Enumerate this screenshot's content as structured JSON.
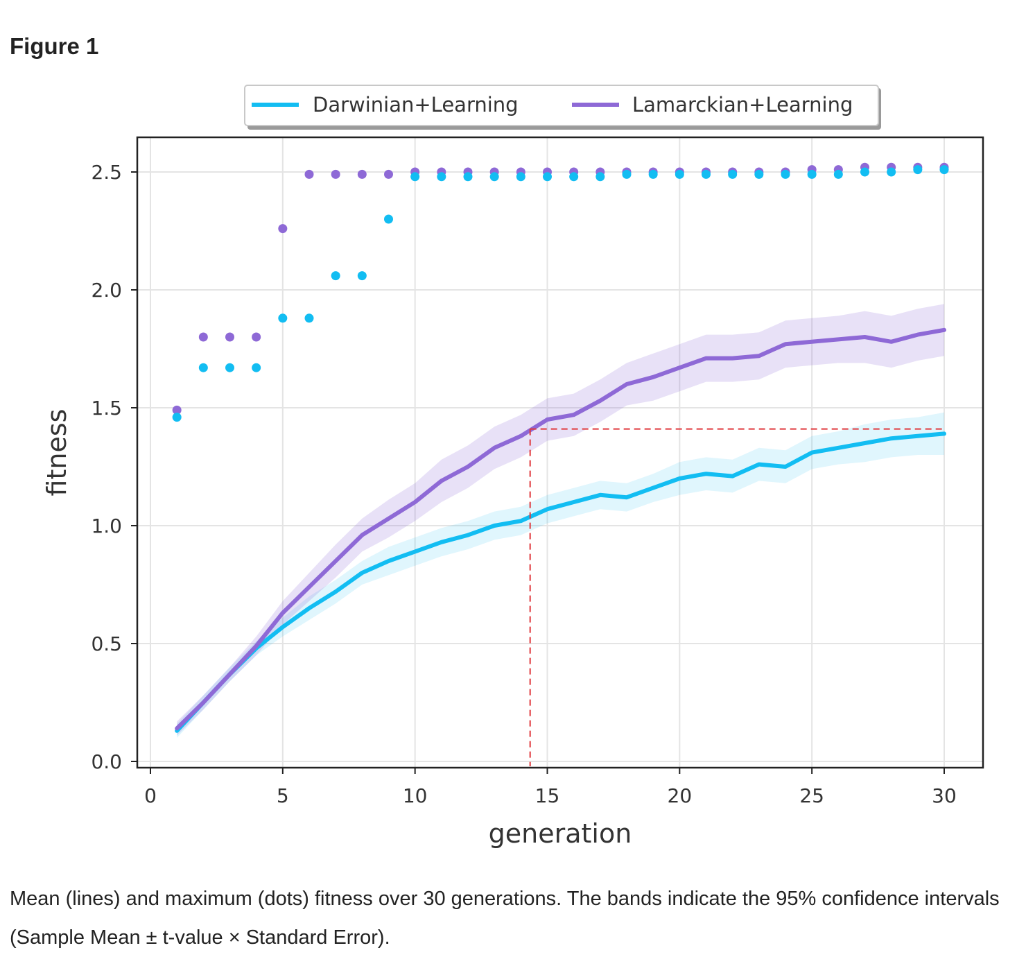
{
  "figure": {
    "title": "Figure 1",
    "caption": "Mean (lines) and maximum (dots) fitness over 30 generations. The bands indicate the 95% confidence intervals (Sample Mean ± t-value × Standard Error)."
  },
  "chart_data": {
    "type": "line",
    "title": "",
    "xlabel": "generation",
    "ylabel": "fitness",
    "xlim": [
      -0.5,
      31.5
    ],
    "ylim": [
      -0.03,
      2.65
    ],
    "xticks": [
      0,
      5,
      10,
      15,
      20,
      25,
      30
    ],
    "xtick_labels": [
      "0",
      "5",
      "10",
      "15",
      "20",
      "25",
      "30"
    ],
    "yticks": [
      0.0,
      0.5,
      1.0,
      1.5,
      2.0,
      2.5
    ],
    "ytick_labels": [
      "0.0",
      "0.5",
      "1.0",
      "1.5",
      "2.0",
      "2.5"
    ],
    "grid": true,
    "legend_position": "top-center-outside",
    "x": [
      1,
      2,
      3,
      4,
      5,
      6,
      7,
      8,
      9,
      10,
      11,
      12,
      13,
      14,
      15,
      16,
      17,
      18,
      19,
      20,
      21,
      22,
      23,
      24,
      25,
      26,
      27,
      28,
      29,
      30
    ],
    "series": [
      {
        "name": "Darwinian+Learning",
        "color": "#12bdf2",
        "mean": [
          0.13,
          0.25,
          0.37,
          0.48,
          0.57,
          0.65,
          0.72,
          0.8,
          0.85,
          0.89,
          0.93,
          0.96,
          1.0,
          1.02,
          1.07,
          1.1,
          1.13,
          1.12,
          1.16,
          1.2,
          1.22,
          1.21,
          1.26,
          1.25,
          1.31,
          1.33,
          1.35,
          1.37,
          1.38,
          1.39
        ],
        "ci_halfwidth": [
          0.03,
          0.03,
          0.03,
          0.03,
          0.04,
          0.05,
          0.05,
          0.05,
          0.06,
          0.06,
          0.06,
          0.06,
          0.06,
          0.06,
          0.06,
          0.06,
          0.06,
          0.06,
          0.06,
          0.07,
          0.07,
          0.07,
          0.07,
          0.07,
          0.07,
          0.07,
          0.08,
          0.08,
          0.08,
          0.09
        ],
        "max": [
          1.46,
          1.67,
          1.67,
          1.67,
          1.88,
          1.88,
          2.06,
          2.06,
          2.3,
          2.48,
          2.48,
          2.48,
          2.48,
          2.48,
          2.48,
          2.48,
          2.48,
          2.49,
          2.49,
          2.49,
          2.49,
          2.49,
          2.49,
          2.49,
          2.49,
          2.49,
          2.5,
          2.5,
          2.51,
          2.51
        ]
      },
      {
        "name": "Lamarckian+Learning",
        "color": "#8e69d6",
        "mean": [
          0.14,
          0.25,
          0.37,
          0.49,
          0.63,
          0.74,
          0.85,
          0.96,
          1.03,
          1.1,
          1.19,
          1.25,
          1.33,
          1.38,
          1.45,
          1.47,
          1.53,
          1.6,
          1.63,
          1.67,
          1.71,
          1.71,
          1.72,
          1.77,
          1.78,
          1.79,
          1.8,
          1.78,
          1.81,
          1.83
        ],
        "ci_halfwidth": [
          0.03,
          0.03,
          0.03,
          0.04,
          0.05,
          0.06,
          0.07,
          0.07,
          0.08,
          0.08,
          0.09,
          0.09,
          0.09,
          0.09,
          0.09,
          0.09,
          0.09,
          0.09,
          0.1,
          0.1,
          0.1,
          0.1,
          0.1,
          0.1,
          0.1,
          0.1,
          0.11,
          0.11,
          0.11,
          0.11
        ],
        "max": [
          1.49,
          1.8,
          1.8,
          1.8,
          2.26,
          2.49,
          2.49,
          2.49,
          2.49,
          2.5,
          2.5,
          2.5,
          2.5,
          2.5,
          2.5,
          2.5,
          2.5,
          2.5,
          2.5,
          2.5,
          2.5,
          2.5,
          2.5,
          2.5,
          2.51,
          2.51,
          2.52,
          2.52,
          2.52,
          2.52
        ]
      }
    ],
    "annotations": [
      {
        "type": "dashed-reference-lines",
        "color": "#e0383c",
        "description": "Darwinian final mean reached by Lamarckian",
        "x": 14.35,
        "y": 1.41,
        "x_end": 30
      }
    ]
  }
}
